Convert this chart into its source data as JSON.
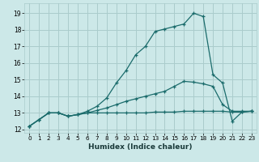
{
  "title": "",
  "xlabel": "Humidex (Indice chaleur)",
  "xlim": [
    -0.5,
    23.5
  ],
  "ylim": [
    11.8,
    19.6
  ],
  "yticks": [
    12,
    13,
    14,
    15,
    16,
    17,
    18,
    19
  ],
  "xticks": [
    0,
    1,
    2,
    3,
    4,
    5,
    6,
    7,
    8,
    9,
    10,
    11,
    12,
    13,
    14,
    15,
    16,
    17,
    18,
    19,
    20,
    21,
    22,
    23
  ],
  "bg_color": "#cce8e8",
  "grid_color": "#aacccc",
  "line_color": "#1a6b6b",
  "lines": [
    {
      "x": [
        0,
        1,
        2,
        3,
        4,
        5,
        6,
        7,
        8,
        9,
        10,
        11,
        12,
        13,
        14,
        15,
        16,
        17,
        18,
        19,
        20,
        21,
        22,
        23
      ],
      "y": [
        12.2,
        12.6,
        13.0,
        13.0,
        12.8,
        12.9,
        13.0,
        13.0,
        13.0,
        13.0,
        13.0,
        13.0,
        13.0,
        13.05,
        13.05,
        13.05,
        13.1,
        13.1,
        13.1,
        13.1,
        13.1,
        13.05,
        13.05,
        13.1
      ]
    },
    {
      "x": [
        0,
        1,
        2,
        3,
        4,
        5,
        6,
        7,
        8,
        9,
        10,
        11,
        12,
        13,
        14,
        15,
        16,
        17,
        18,
        19,
        20,
        21,
        22,
        23
      ],
      "y": [
        12.2,
        12.6,
        13.0,
        13.0,
        12.8,
        12.9,
        13.0,
        13.15,
        13.3,
        13.5,
        13.7,
        13.85,
        14.0,
        14.15,
        14.3,
        14.6,
        14.9,
        14.85,
        14.75,
        14.6,
        13.5,
        13.1,
        13.1,
        13.1
      ]
    },
    {
      "x": [
        0,
        1,
        2,
        3,
        4,
        5,
        6,
        7,
        8,
        9,
        10,
        11,
        12,
        13,
        14,
        15,
        16,
        17,
        18,
        19,
        20,
        21,
        22,
        23
      ],
      "y": [
        12.2,
        12.6,
        13.0,
        13.0,
        12.8,
        12.9,
        13.1,
        13.4,
        13.9,
        14.8,
        15.55,
        16.5,
        17.0,
        17.9,
        18.05,
        18.2,
        18.35,
        19.0,
        18.8,
        15.3,
        14.8,
        12.5,
        13.05,
        13.1
      ]
    }
  ]
}
